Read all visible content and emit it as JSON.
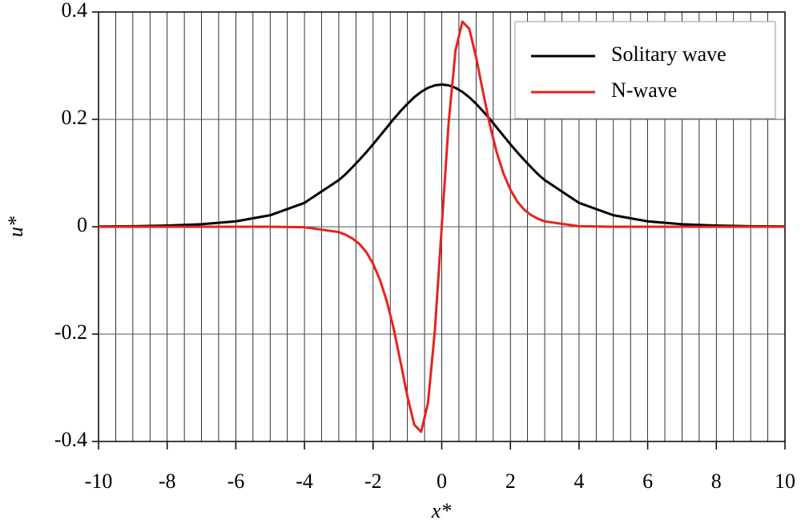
{
  "chart_data": {
    "type": "line",
    "xlabel": "x*",
    "ylabel": "u*",
    "x": [
      -10,
      -9,
      -8,
      -7,
      -6,
      -5,
      -4,
      -3,
      -2.8,
      -2.6,
      -2.4,
      -2.2,
      -2,
      -1.8,
      -1.6,
      -1.4,
      -1.2,
      -1,
      -0.8,
      -0.6,
      -0.4,
      -0.2,
      0,
      0.2,
      0.4,
      0.6,
      0.8,
      1,
      1.2,
      1.4,
      1.6,
      1.8,
      2,
      2.2,
      2.4,
      2.6,
      2.8,
      3,
      4,
      5,
      6,
      7,
      8,
      9,
      10
    ],
    "series": [
      {
        "name": "Solitary wave",
        "color": "#000000",
        "values": [
          0.0005,
          0.001,
          0.0022,
          0.0047,
          0.0101,
          0.0214,
          0.0445,
          0.0869,
          0.098,
          0.111,
          0.1246,
          0.1387,
          0.1537,
          0.1693,
          0.1849,
          0.2008,
          0.2154,
          0.2291,
          0.2413,
          0.2513,
          0.2588,
          0.2634,
          0.265,
          0.2634,
          0.2588,
          0.2513,
          0.2413,
          0.2291,
          0.2154,
          0.2008,
          0.1849,
          0.1693,
          0.1537,
          0.1387,
          0.1246,
          0.111,
          0.098,
          0.0869,
          0.0445,
          0.0214,
          0.0101,
          0.0047,
          0.0022,
          0.001,
          0.0005
        ]
      },
      {
        "name": "N-wave",
        "color": "#e8221c",
        "values": [
          0,
          0,
          0,
          0,
          0,
          0,
          -0.001,
          -0.01,
          -0.015,
          -0.022,
          -0.032,
          -0.047,
          -0.069,
          -0.099,
          -0.139,
          -0.19,
          -0.252,
          -0.316,
          -0.369,
          -0.382,
          -0.328,
          -0.193,
          0,
          0.193,
          0.328,
          0.382,
          0.369,
          0.316,
          0.252,
          0.19,
          0.139,
          0.099,
          0.069,
          0.047,
          0.032,
          0.022,
          0.015,
          0.01,
          0.001,
          0,
          0,
          0,
          0,
          0,
          0
        ]
      }
    ],
    "xlim": [
      -10,
      10
    ],
    "ylim": [
      -0.4,
      0.4
    ],
    "xticks": [
      -10,
      -8,
      -6,
      -4,
      -2,
      0,
      2,
      4,
      6,
      8,
      10
    ],
    "yticks": [
      -0.4,
      -0.2,
      0,
      0.2,
      0.4
    ],
    "xgrid": [
      -10,
      -9.5,
      -9,
      -8.5,
      -8,
      -7.5,
      -7,
      -6.5,
      -6,
      -5.5,
      -5,
      -4.5,
      -4,
      -3.5,
      -3,
      -2.5,
      -2,
      -1.5,
      -1,
      -0.5,
      0,
      0.5,
      1,
      1.5,
      2,
      2.5,
      3,
      3.5,
      4,
      4.5,
      5,
      5.5,
      6,
      6.5,
      7,
      7.5,
      8,
      8.5,
      9,
      9.5,
      10
    ],
    "grid": true,
    "legend": "upper right"
  }
}
